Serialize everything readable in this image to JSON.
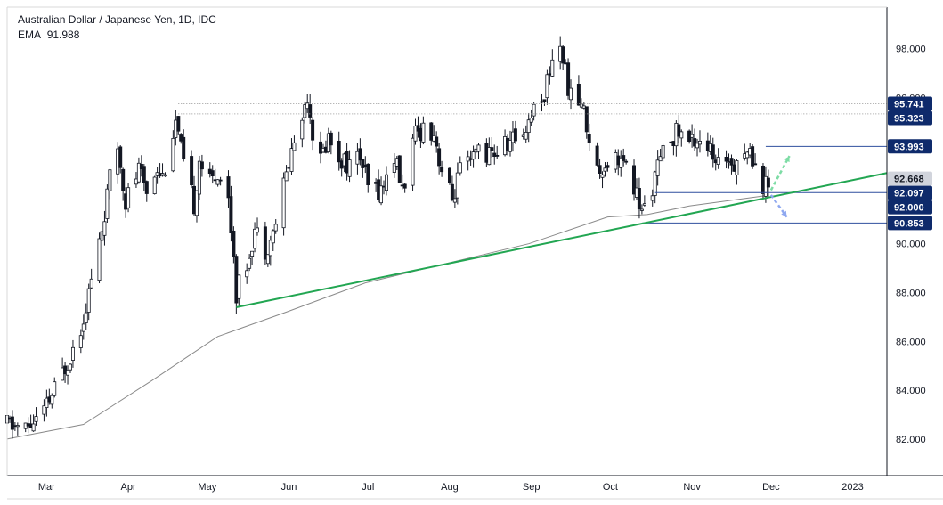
{
  "legend": {
    "title": "Australian Dollar / Japanese Yen, 1D, IDC",
    "ema_label": "EMA",
    "ema_value": "91.988"
  },
  "colors": {
    "candle": "#131722",
    "ema_line": "#8a8a8a",
    "trendline": "#22a652",
    "level_line": "#2f4f9e",
    "dotted_line": "#9a9a9a",
    "badge_blue": "#0e2a6b",
    "badge_grey": "#d1d4dc",
    "arrow_up": "#7ddca5",
    "arrow_down": "#8fa8f0"
  },
  "chart_data": {
    "type": "candlestick",
    "title": "Australian Dollar / Japanese Yen, 1D, IDC",
    "ylim": [
      80.5,
      99.7
    ],
    "x_range": [
      "2022-02-14",
      "2023-01-14"
    ],
    "y_ticks": [
      "98.000",
      "96.000",
      "94.000",
      "92.000",
      "90.000",
      "88.000",
      "86.000",
      "84.000",
      "82.000"
    ],
    "y_tick_values": [
      98,
      96,
      94,
      92,
      90,
      88,
      86,
      84,
      82
    ],
    "x_ticks": [
      {
        "label": "Mar",
        "date": "2022-03-01"
      },
      {
        "label": "Apr",
        "date": "2022-04-01"
      },
      {
        "label": "May",
        "date": "2022-05-01"
      },
      {
        "label": "Jun",
        "date": "2022-06-01"
      },
      {
        "label": "Jul",
        "date": "2022-07-01"
      },
      {
        "label": "Aug",
        "date": "2022-08-01"
      },
      {
        "label": "Sep",
        "date": "2022-09-01"
      },
      {
        "label": "Oct",
        "date": "2022-10-01"
      },
      {
        "label": "Nov",
        "date": "2022-11-01"
      },
      {
        "label": "Dec",
        "date": "2022-12-01"
      },
      {
        "label": "2023",
        "date": "2023-01-01"
      }
    ],
    "close_path": [
      [
        "2022-02-14",
        82.6
      ],
      [
        "2022-02-21",
        82.4
      ],
      [
        "2022-02-28",
        83.1
      ],
      [
        "2022-03-04",
        84.0
      ],
      [
        "2022-03-09",
        85.2
      ],
      [
        "2022-03-14",
        86.6
      ],
      [
        "2022-03-18",
        88.5
      ],
      [
        "2022-03-22",
        90.6
      ],
      [
        "2022-03-25",
        92.6
      ],
      [
        "2022-03-28",
        94.0
      ],
      [
        "2022-03-31",
        91.8
      ],
      [
        "2022-04-05",
        93.0
      ],
      [
        "2022-04-08",
        92.2
      ],
      [
        "2022-04-12",
        93.2
      ],
      [
        "2022-04-14",
        92.8
      ],
      [
        "2022-04-19",
        95.0
      ],
      [
        "2022-04-22",
        93.2
      ],
      [
        "2022-04-26",
        91.6
      ],
      [
        "2022-04-28",
        93.5
      ],
      [
        "2022-05-02",
        92.5
      ],
      [
        "2022-05-05",
        93.0
      ],
      [
        "2022-05-09",
        91.8
      ],
      [
        "2022-05-11",
        89.6
      ],
      [
        "2022-05-12",
        88.0
      ],
      [
        "2022-05-16",
        89.2
      ],
      [
        "2022-05-19",
        90.6
      ],
      [
        "2022-05-23",
        89.8
      ],
      [
        "2022-05-26",
        90.4
      ],
      [
        "2022-05-30",
        92.4
      ],
      [
        "2022-06-02",
        93.8
      ],
      [
        "2022-06-06",
        95.2
      ],
      [
        "2022-06-08",
        96.2
      ],
      [
        "2022-06-10",
        94.6
      ],
      [
        "2022-06-13",
        93.4
      ],
      [
        "2022-06-16",
        94.4
      ],
      [
        "2022-06-20",
        93.6
      ],
      [
        "2022-06-24",
        93.2
      ],
      [
        "2022-06-28",
        93.6
      ],
      [
        "2022-07-01",
        92.3
      ],
      [
        "2022-07-06",
        92.2
      ],
      [
        "2022-07-11",
        93.6
      ],
      [
        "2022-07-14",
        92.2
      ],
      [
        "2022-07-19",
        94.4
      ],
      [
        "2022-07-22",
        94.8
      ],
      [
        "2022-07-26",
        94.6
      ],
      [
        "2022-07-29",
        93.0
      ],
      [
        "2022-08-02",
        91.8
      ],
      [
        "2022-08-05",
        93.0
      ],
      [
        "2022-08-09",
        93.2
      ],
      [
        "2022-08-12",
        94.0
      ],
      [
        "2022-08-16",
        93.6
      ],
      [
        "2022-08-19",
        93.8
      ],
      [
        "2022-08-24",
        94.2
      ],
      [
        "2022-08-29",
        94.6
      ],
      [
        "2022-09-02",
        95.6
      ],
      [
        "2022-09-06",
        96.2
      ],
      [
        "2022-09-09",
        97.6
      ],
      [
        "2022-09-12",
        98.2
      ],
      [
        "2022-09-14",
        97.0
      ],
      [
        "2022-09-16",
        96.0
      ],
      [
        "2022-09-20",
        95.8
      ],
      [
        "2022-09-23",
        94.4
      ],
      [
        "2022-09-26",
        93.0
      ],
      [
        "2022-09-30",
        93.4
      ],
      [
        "2022-10-04",
        93.6
      ],
      [
        "2022-10-07",
        93.0
      ],
      [
        "2022-10-11",
        92.0
      ],
      [
        "2022-10-13",
        91.2
      ],
      [
        "2022-10-17",
        92.4
      ],
      [
        "2022-10-20",
        93.4
      ],
      [
        "2022-10-24",
        94.4
      ],
      [
        "2022-10-27",
        94.6
      ],
      [
        "2022-10-31",
        94.2
      ],
      [
        "2022-11-04",
        94.4
      ],
      [
        "2022-11-08",
        93.8
      ],
      [
        "2022-11-10",
        93.0
      ],
      [
        "2022-11-14",
        93.6
      ],
      [
        "2022-11-17",
        93.4
      ],
      [
        "2022-11-21",
        93.8
      ],
      [
        "2022-11-24",
        93.6
      ],
      [
        "2022-11-28",
        92.4
      ],
      [
        "2022-11-30",
        92.4
      ]
    ],
    "ema_path": [
      [
        "2022-02-14",
        82.0
      ],
      [
        "2022-03-15",
        82.6
      ],
      [
        "2022-04-10",
        84.4
      ],
      [
        "2022-05-05",
        86.2
      ],
      [
        "2022-05-31",
        87.2
      ],
      [
        "2022-06-30",
        88.4
      ],
      [
        "2022-07-31",
        89.2
      ],
      [
        "2022-08-31",
        90.0
      ],
      [
        "2022-09-30",
        91.1
      ],
      [
        "2022-10-15",
        91.2
      ],
      [
        "2022-10-31",
        91.55
      ],
      [
        "2022-11-30",
        91.99
      ]
    ],
    "annotations": {
      "trendline": [
        [
          "2022-05-12",
          87.4
        ],
        [
          "2023-01-14",
          92.9
        ]
      ],
      "horizontal_levels": [
        {
          "label": "93.993",
          "value": 93.993,
          "from": "2022-11-29"
        },
        {
          "label": "92.097",
          "value": 92.097,
          "from": "2022-10-18"
        },
        {
          "label": "90.853",
          "value": 90.853,
          "from": "2022-10-13"
        }
      ],
      "dotted_levels": [
        {
          "label": "95.741",
          "value": 95.741,
          "from": "2022-04-20"
        },
        {
          "label": "95.323",
          "value": 95.323,
          "from": "2022-04-20"
        }
      ],
      "price_badges": [
        {
          "label": "95.741",
          "value": 95.741,
          "style": "blue"
        },
        {
          "label": "95.323",
          "value": 95.323,
          "style": "blue"
        },
        {
          "label": "93.993",
          "value": 93.993,
          "style": "blue"
        },
        {
          "label": "92.668",
          "value": 92.668,
          "style": "grey"
        },
        {
          "label": "92.097",
          "value": 92.097,
          "style": "blue"
        },
        {
          "label": "92.000",
          "value": 92.0,
          "style": "blue"
        },
        {
          "label": "90.853",
          "value": 90.853,
          "style": "blue"
        }
      ],
      "arrows": [
        {
          "direction": "up",
          "from": [
            "2022-12-01",
            92.2
          ],
          "to": [
            "2022-12-08",
            93.6
          ]
        },
        {
          "direction": "down",
          "from": [
            "2022-12-01",
            92.0
          ],
          "to": [
            "2022-12-07",
            91.1
          ]
        }
      ]
    }
  }
}
